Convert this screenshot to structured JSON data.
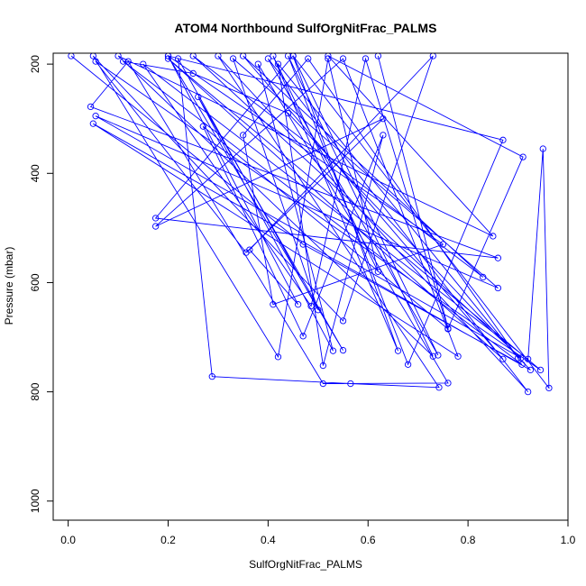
{
  "chart_data": {
    "type": "line",
    "title": "ATOM4 Northbound SulfOrgNitFrac_PALMS",
    "xlabel": "SulfOrgNitFrac_PALMS",
    "ylabel": "Pressure (mbar)",
    "xlim": [
      -0.03,
      1.0
    ],
    "ylim": [
      1035,
      180
    ],
    "y_axis_reversed": true,
    "xticks": [
      0.0,
      0.2,
      0.4,
      0.6,
      0.8,
      1.0
    ],
    "xtick_labels": [
      "0.0",
      "0.2",
      "0.4",
      "0.6",
      "0.8",
      "1.0"
    ],
    "yticks": [
      200,
      400,
      600,
      800,
      1000
    ],
    "ytick_labels": [
      "200",
      "400",
      "600",
      "800",
      "1000"
    ],
    "grid": false,
    "legend": "none",
    "line_color": "#0000ff",
    "marker": "open-circle",
    "series": [
      {
        "points": [
          [
            0.006,
            185
          ],
          [
            0.47,
            530
          ],
          [
            0.908,
            750
          ],
          [
            0.11,
            195
          ],
          [
            0.25,
            217
          ],
          [
            0.44,
            290
          ],
          [
            0.925,
            760
          ],
          [
            0.05,
            309
          ],
          [
            0.78,
            735
          ],
          [
            0.55,
            190
          ],
          [
            0.175,
            497
          ],
          [
            0.63,
            300
          ],
          [
            0.356,
            545
          ],
          [
            0.055,
            195
          ],
          [
            0.945,
            760
          ],
          [
            0.2,
            190
          ],
          [
            0.87,
            740
          ],
          [
            0.35,
            185
          ],
          [
            0.83,
            590
          ],
          [
            0.25,
            185
          ],
          [
            0.906,
            738
          ],
          [
            0.055,
            295
          ],
          [
            0.86,
            610
          ],
          [
            0.33,
            190
          ],
          [
            0.5,
            650
          ],
          [
            0.22,
            190
          ],
          [
            0.288,
            772
          ],
          [
            0.565,
            785
          ],
          [
            0.742,
            792
          ],
          [
            0.3,
            185
          ],
          [
            0.92,
            800
          ],
          [
            0.4,
            190
          ],
          [
            0.74,
            733
          ],
          [
            0.45,
            185
          ],
          [
            0.962,
            793
          ],
          [
            0.95,
            355
          ],
          [
            0.92,
            740
          ],
          [
            0.15,
            200
          ],
          [
            0.486,
            643
          ],
          [
            0.595,
            190
          ],
          [
            0.76,
            685
          ],
          [
            0.27,
            314
          ],
          [
            0.47,
            698
          ],
          [
            0.63,
            330
          ],
          [
            0.51,
            752
          ],
          [
            0.42,
            200
          ],
          [
            0.9,
            738
          ],
          [
            0.48,
            190
          ],
          [
            0.35,
            330
          ],
          [
            0.41,
            640
          ],
          [
            0.75,
            530
          ],
          [
            0.2,
            185
          ],
          [
            0.55,
            724
          ],
          [
            0.26,
            260
          ],
          [
            0.53,
            725
          ],
          [
            0.38,
            200
          ],
          [
            0.76,
            784
          ],
          [
            0.51,
            785
          ],
          [
            0.12,
            195
          ],
          [
            0.045,
            278
          ],
          [
            0.86,
            555
          ],
          [
            0.175,
            482
          ],
          [
            0.45,
            185
          ],
          [
            0.66,
            725
          ],
          [
            0.41,
            185
          ],
          [
            0.62,
            580
          ],
          [
            0.52,
            190
          ],
          [
            0.42,
            736
          ],
          [
            0.05,
            185
          ],
          [
            0.55,
            670
          ],
          [
            0.73,
            185
          ],
          [
            0.363,
            540
          ],
          [
            0.46,
            640
          ],
          [
            0.2,
            185
          ],
          [
            0.87,
            339
          ],
          [
            0.68,
            750
          ],
          [
            0.44,
            185
          ],
          [
            0.73,
            735
          ],
          [
            0.1,
            185
          ],
          [
            0.85,
            515
          ],
          [
            0.52,
            185
          ],
          [
            0.91,
            370
          ],
          [
            0.76,
            684
          ],
          [
            0.62,
            185
          ]
        ]
      }
    ]
  }
}
